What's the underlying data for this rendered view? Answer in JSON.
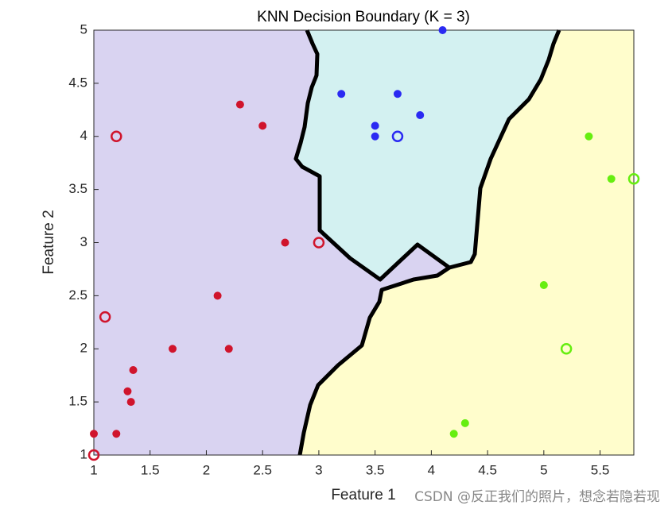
{
  "chart_data": {
    "type": "scatter",
    "title": "KNN Decision Boundary (K = 3)",
    "x_label": "Feature 1",
    "y_label": "Feature 2",
    "watermark": "CSDN @反正我们的照片，想念若隐若现",
    "xlim": [
      1,
      5.8
    ],
    "ylim": [
      1,
      5
    ],
    "xticks": [
      1,
      1.5,
      2,
      2.5,
      3,
      3.5,
      4,
      4.5,
      5,
      5.5
    ],
    "yticks": [
      1,
      1.5,
      2,
      2.5,
      3,
      3.5,
      4,
      4.5,
      5
    ],
    "grid": false,
    "series": [
      {
        "color": "#d0142c",
        "marker": "filled",
        "x": [
          2.3,
          2.5,
          2.7,
          2.1,
          1.7,
          2.2,
          1.35,
          1.3,
          1.33,
          1.0,
          1.2
        ],
        "y": [
          4.3,
          4.1,
          3.0,
          2.5,
          2.0,
          2.0,
          1.8,
          1.6,
          1.5,
          1.2,
          1.2
        ]
      },
      {
        "color": "#d0142c",
        "marker": "open",
        "x": [
          1.2,
          3.0,
          1.1,
          1.0
        ],
        "y": [
          4.0,
          3.0,
          2.3,
          1.0
        ]
      },
      {
        "color": "#2a2af2",
        "marker": "filled",
        "x": [
          4.1,
          3.2,
          3.7,
          3.9,
          3.5,
          3.5
        ],
        "y": [
          5.0,
          4.4,
          4.4,
          4.2,
          4.1,
          4.0
        ]
      },
      {
        "color": "#2a2af2",
        "marker": "open",
        "x": [
          3.7
        ],
        "y": [
          4.0
        ]
      },
      {
        "color": "#66ee10",
        "marker": "filled",
        "x": [
          5.4,
          5.6,
          5.0,
          4.2,
          4.3
        ],
        "y": [
          4.0,
          3.6,
          2.6,
          1.2,
          1.3
        ]
      },
      {
        "color": "#66ee10",
        "marker": "open",
        "x": [
          5.8,
          5.2
        ],
        "y": [
          3.6,
          2.0
        ]
      }
    ]
  }
}
